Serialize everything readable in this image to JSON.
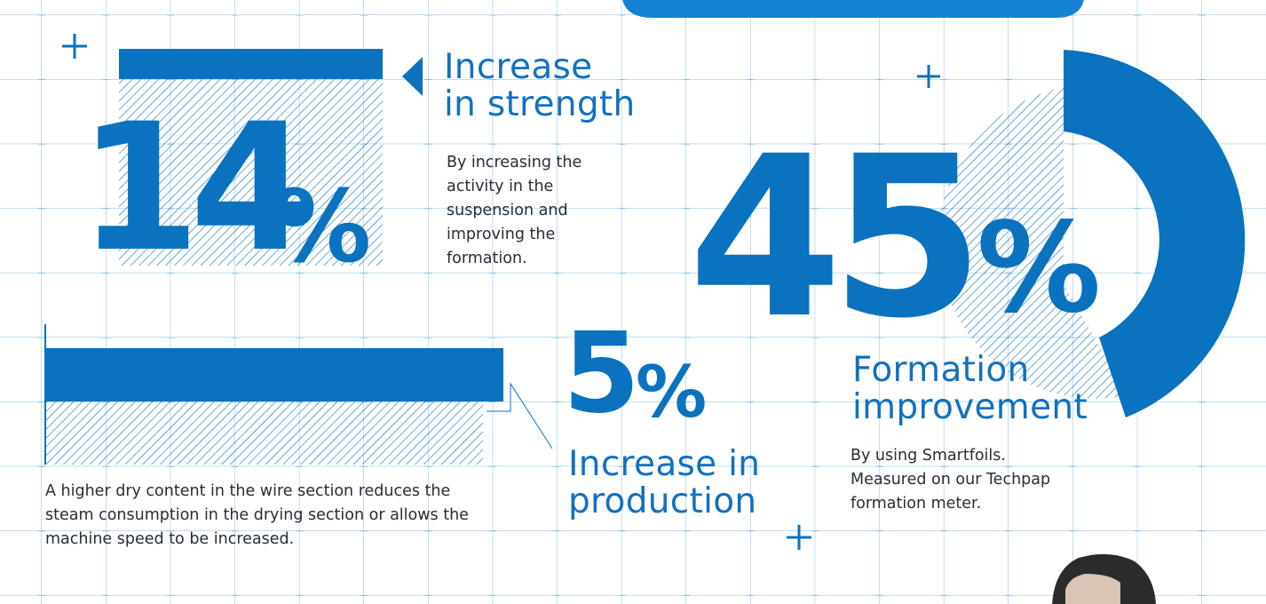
{
  "colors": {
    "accent": "#0a72bf",
    "grid": "#86bde3",
    "body_text": "#2a2d35"
  },
  "stats": {
    "strength": {
      "number": "14",
      "unit": "%",
      "title_line1": "Increase",
      "title_line2": "in strength",
      "description": [
        "By increasing the",
        "activity in the",
        "suspension and",
        "improving the",
        "formation."
      ]
    },
    "formation": {
      "number": "45",
      "unit": "%",
      "title_line1": "Formation",
      "title_line2": "improvement",
      "description": [
        "By using Smartfoils.",
        "Measured on our Techpap",
        "formation meter."
      ]
    },
    "production": {
      "number": "5",
      "unit": "%",
      "title_line1": "Increase in",
      "title_line2": "production",
      "description": [
        "A higher dry content in the wire section reduces the",
        "steam consumption in the drying section or allows the",
        "machine speed to be increased."
      ]
    }
  },
  "icons": [
    "plus-icon",
    "arrow-left-icon",
    "person-photo"
  ]
}
